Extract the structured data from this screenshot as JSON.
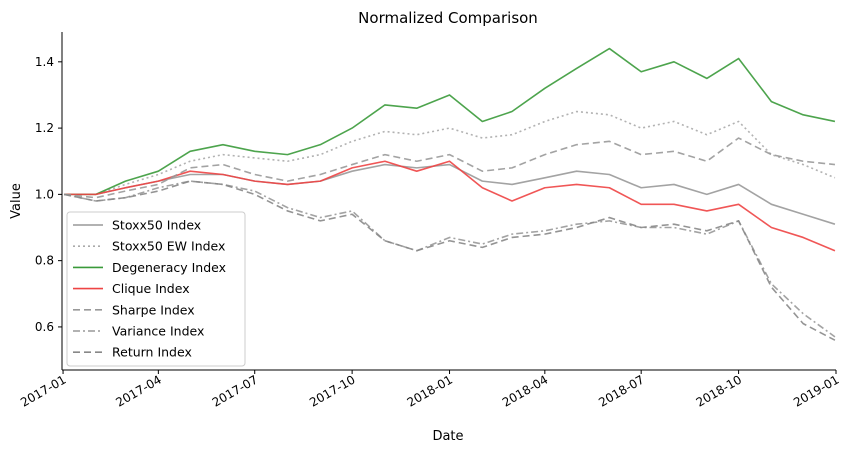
{
  "chart_data": {
    "type": "line",
    "title": "Normalized Comparison",
    "xlabel": "Date",
    "ylabel": "Value",
    "xlim": [
      "2016-12-31",
      "2019-01-01"
    ],
    "ylim": [
      0.47,
      1.49
    ],
    "x_ticks": [
      "2017-01",
      "2017-04",
      "2017-07",
      "2017-10",
      "2018-01",
      "2018-04",
      "2018-07",
      "2018-10",
      "2019-01"
    ],
    "x_tick_dates": [
      "2017-01-01",
      "2017-04-01",
      "2017-07-01",
      "2017-10-01",
      "2018-01-01",
      "2018-04-01",
      "2018-07-01",
      "2018-10-01",
      "2019-01-01"
    ],
    "y_ticks": [
      0.6,
      0.8,
      1.0,
      1.2,
      1.4
    ],
    "grid": false,
    "legend_position": "lower-left",
    "series": [
      {
        "name": "Stoxx50 Index",
        "color": "#999999",
        "dash": "solid",
        "x": [
          "2017-01-02",
          "2017-02-01",
          "2017-03-01",
          "2017-04-01",
          "2017-05-01",
          "2017-06-01",
          "2017-07-01",
          "2017-08-01",
          "2017-09-01",
          "2017-10-01",
          "2017-11-01",
          "2017-12-01",
          "2018-01-01",
          "2018-02-01",
          "2018-03-01",
          "2018-04-01",
          "2018-05-01",
          "2018-06-01",
          "2018-07-01",
          "2018-08-01",
          "2018-09-01",
          "2018-10-01",
          "2018-11-01",
          "2018-12-01",
          "2018-12-31"
        ],
        "values": [
          1.0,
          1.0,
          1.02,
          1.04,
          1.06,
          1.06,
          1.04,
          1.03,
          1.04,
          1.07,
          1.09,
          1.08,
          1.09,
          1.04,
          1.03,
          1.05,
          1.07,
          1.06,
          1.02,
          1.03,
          1.0,
          1.03,
          0.97,
          0.94,
          0.91
        ]
      },
      {
        "name": "Stoxx50 EW Index",
        "color": "#aaaaaa",
        "dash": "dotted",
        "x": [
          "2017-01-02",
          "2017-02-01",
          "2017-03-01",
          "2017-04-01",
          "2017-05-01",
          "2017-06-01",
          "2017-07-01",
          "2017-08-01",
          "2017-09-01",
          "2017-10-01",
          "2017-11-01",
          "2017-12-01",
          "2018-01-01",
          "2018-02-01",
          "2018-03-01",
          "2018-04-01",
          "2018-05-01",
          "2018-06-01",
          "2018-07-01",
          "2018-08-01",
          "2018-09-01",
          "2018-10-01",
          "2018-11-01",
          "2018-12-01",
          "2018-12-31"
        ],
        "values": [
          1.0,
          1.0,
          1.03,
          1.06,
          1.1,
          1.12,
          1.11,
          1.1,
          1.12,
          1.16,
          1.19,
          1.18,
          1.2,
          1.17,
          1.18,
          1.22,
          1.25,
          1.24,
          1.2,
          1.22,
          1.18,
          1.22,
          1.12,
          1.09,
          1.05
        ]
      },
      {
        "name": "Degeneracy Index",
        "color": "#3a9a3a",
        "dash": "solid",
        "x": [
          "2017-01-02",
          "2017-02-01",
          "2017-03-01",
          "2017-04-01",
          "2017-05-01",
          "2017-06-01",
          "2017-07-01",
          "2017-08-01",
          "2017-09-01",
          "2017-10-01",
          "2017-11-01",
          "2017-12-01",
          "2018-01-01",
          "2018-02-01",
          "2018-03-01",
          "2018-04-01",
          "2018-05-01",
          "2018-06-01",
          "2018-07-01",
          "2018-08-01",
          "2018-09-01",
          "2018-10-01",
          "2018-11-01",
          "2018-12-01",
          "2018-12-31"
        ],
        "values": [
          1.0,
          1.0,
          1.04,
          1.07,
          1.13,
          1.15,
          1.13,
          1.12,
          1.15,
          1.2,
          1.27,
          1.26,
          1.3,
          1.22,
          1.25,
          1.32,
          1.38,
          1.44,
          1.37,
          1.4,
          1.35,
          1.41,
          1.28,
          1.24,
          1.22
        ]
      },
      {
        "name": "Clique Index",
        "color": "#ee4444",
        "dash": "solid",
        "x": [
          "2017-01-02",
          "2017-02-01",
          "2017-03-01",
          "2017-04-01",
          "2017-05-01",
          "2017-06-01",
          "2017-07-01",
          "2017-08-01",
          "2017-09-01",
          "2017-10-01",
          "2017-11-01",
          "2017-12-01",
          "2018-01-01",
          "2018-02-01",
          "2018-03-01",
          "2018-04-01",
          "2018-05-01",
          "2018-06-01",
          "2018-07-01",
          "2018-08-01",
          "2018-09-01",
          "2018-10-01",
          "2018-11-01",
          "2018-12-01",
          "2018-12-31"
        ],
        "values": [
          1.0,
          1.0,
          1.02,
          1.04,
          1.07,
          1.06,
          1.04,
          1.03,
          1.04,
          1.08,
          1.1,
          1.07,
          1.1,
          1.02,
          0.98,
          1.02,
          1.03,
          1.02,
          0.97,
          0.97,
          0.95,
          0.97,
          0.9,
          0.87,
          0.83
        ]
      },
      {
        "name": "Sharpe Index",
        "color": "#999999",
        "dash": "dashed",
        "x": [
          "2017-01-02",
          "2017-02-01",
          "2017-03-01",
          "2017-04-01",
          "2017-05-01",
          "2017-06-01",
          "2017-07-01",
          "2017-08-01",
          "2017-09-01",
          "2017-10-01",
          "2017-11-01",
          "2017-12-01",
          "2018-01-01",
          "2018-02-01",
          "2018-03-01",
          "2018-04-01",
          "2018-05-01",
          "2018-06-01",
          "2018-07-01",
          "2018-08-01",
          "2018-09-01",
          "2018-10-01",
          "2018-11-01",
          "2018-12-01",
          "2018-12-31"
        ],
        "values": [
          1.0,
          0.99,
          1.01,
          1.03,
          1.08,
          1.09,
          1.06,
          1.04,
          1.06,
          1.09,
          1.12,
          1.1,
          1.12,
          1.07,
          1.08,
          1.12,
          1.15,
          1.16,
          1.12,
          1.13,
          1.1,
          1.17,
          1.12,
          1.1,
          1.09
        ]
      },
      {
        "name": "Variance Index",
        "color": "#999999",
        "dash": "dashdot",
        "x": [
          "2017-01-02",
          "2017-02-01",
          "2017-03-01",
          "2017-04-01",
          "2017-05-01",
          "2017-06-01",
          "2017-07-01",
          "2017-08-01",
          "2017-09-01",
          "2017-10-01",
          "2017-11-01",
          "2017-12-01",
          "2018-01-01",
          "2018-02-01",
          "2018-03-01",
          "2018-04-01",
          "2018-05-01",
          "2018-06-01",
          "2018-07-01",
          "2018-08-01",
          "2018-09-01",
          "2018-10-01",
          "2018-11-01",
          "2018-12-01",
          "2018-12-31"
        ],
        "values": [
          1.0,
          0.98,
          0.99,
          1.02,
          1.04,
          1.03,
          1.01,
          0.96,
          0.93,
          0.95,
          0.86,
          0.83,
          0.87,
          0.85,
          0.88,
          0.89,
          0.91,
          0.92,
          0.9,
          0.9,
          0.88,
          0.92,
          0.73,
          0.64,
          0.57
        ]
      },
      {
        "name": "Return Index",
        "color": "#888888",
        "dash": "dashed",
        "x": [
          "2017-01-02",
          "2017-02-01",
          "2017-03-01",
          "2017-04-01",
          "2017-05-01",
          "2017-06-01",
          "2017-07-01",
          "2017-08-01",
          "2017-09-01",
          "2017-10-01",
          "2017-11-01",
          "2017-12-01",
          "2018-01-01",
          "2018-02-01",
          "2018-03-01",
          "2018-04-01",
          "2018-05-01",
          "2018-06-01",
          "2018-07-01",
          "2018-08-01",
          "2018-09-01",
          "2018-10-01",
          "2018-11-01",
          "2018-12-01",
          "2018-12-31"
        ],
        "values": [
          1.0,
          0.98,
          0.99,
          1.01,
          1.04,
          1.03,
          1.0,
          0.95,
          0.92,
          0.94,
          0.86,
          0.83,
          0.86,
          0.84,
          0.87,
          0.88,
          0.9,
          0.93,
          0.9,
          0.91,
          0.89,
          0.92,
          0.72,
          0.61,
          0.56
        ]
      }
    ]
  }
}
